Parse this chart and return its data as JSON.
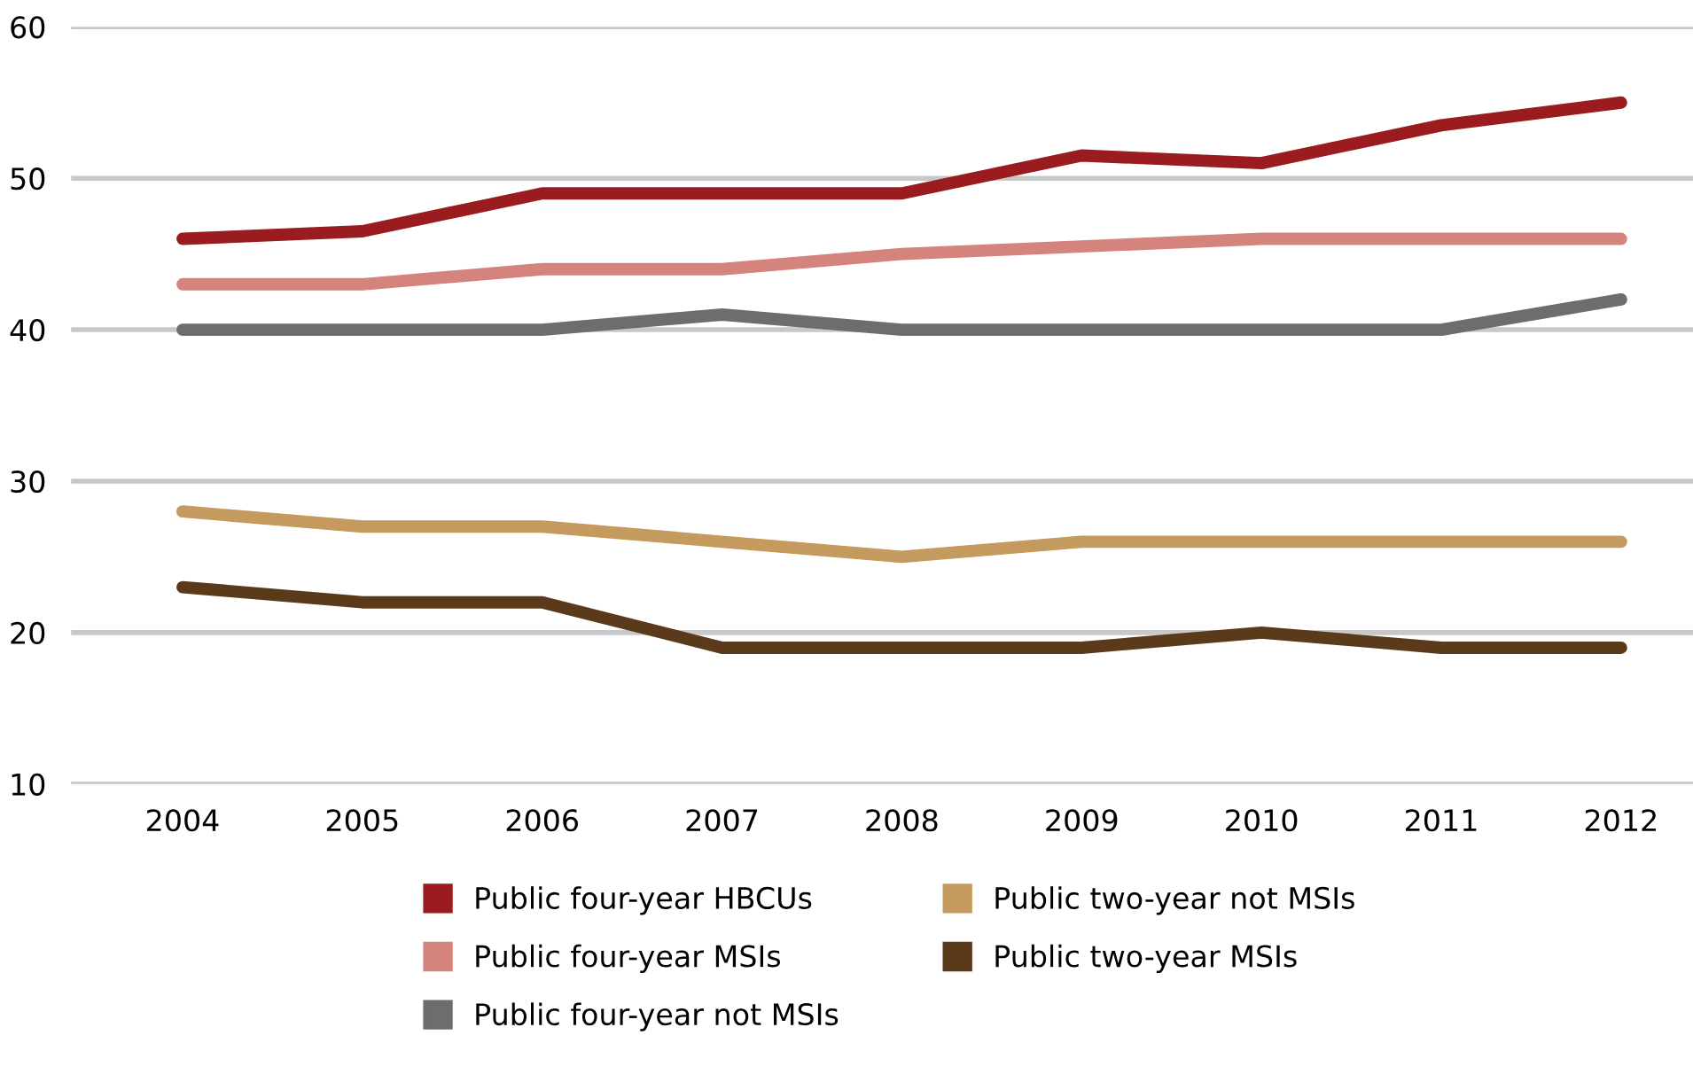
{
  "chart_data": {
    "type": "line",
    "categories": [
      "2004",
      "2005",
      "2006",
      "2007",
      "2008",
      "2009",
      "2010",
      "2011",
      "2012"
    ],
    "series": [
      {
        "name": "Public four-year HBCUs",
        "color": "#9b1c1f",
        "values": [
          46,
          46.5,
          49,
          49,
          49,
          51.5,
          51,
          53.5,
          55
        ]
      },
      {
        "name": "Public four-year MSIs",
        "color": "#d4847c",
        "values": [
          43,
          43,
          44,
          44,
          45,
          45.5,
          46,
          46,
          46
        ]
      },
      {
        "name": "Public four-year not MSIs",
        "color": "#6d6d6d",
        "values": [
          40,
          40,
          40,
          41,
          40,
          40,
          40,
          40,
          42
        ]
      },
      {
        "name": "Public two-year not MSIs",
        "color": "#c49a5e",
        "values": [
          28,
          27,
          27,
          26,
          25,
          26,
          26,
          26,
          26
        ]
      },
      {
        "name": "Public two-year MSIs",
        "color": "#5a3a1a",
        "values": [
          23,
          22,
          22,
          19,
          19,
          19,
          20,
          19,
          19
        ]
      }
    ],
    "ylim": [
      10,
      60
    ],
    "yticks": [
      10,
      20,
      30,
      40,
      50,
      60
    ],
    "grid": "y",
    "legend": "bottom",
    "marker": "none",
    "line_style": "solid"
  }
}
